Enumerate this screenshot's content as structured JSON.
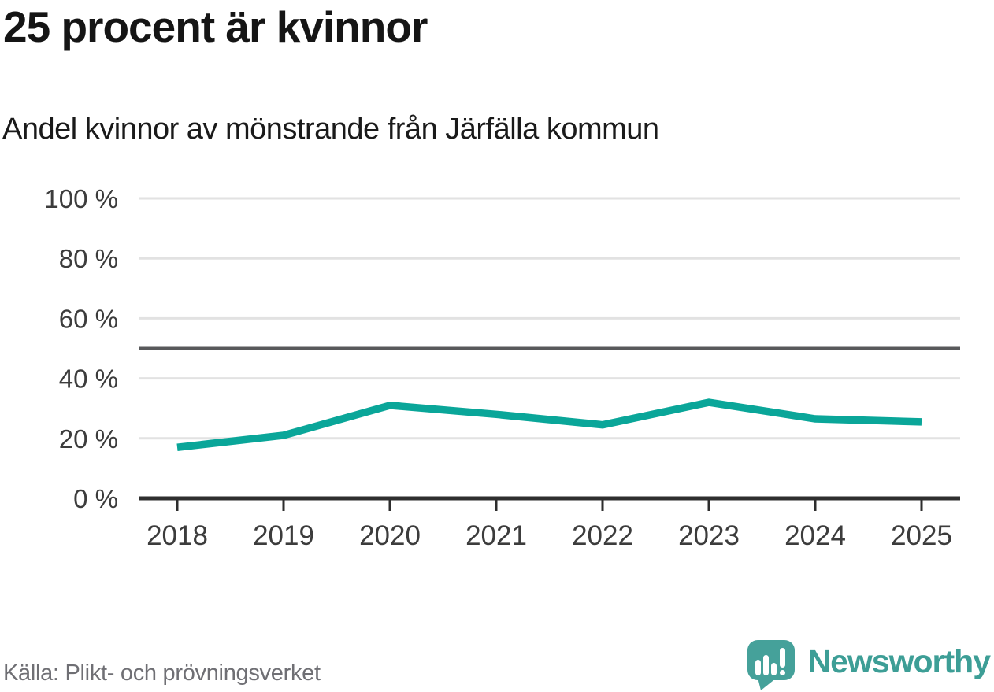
{
  "header": {
    "title": "25 procent är kvinnor",
    "subtitle": "Andel kvinnor av mönstrande från Järfälla kommun"
  },
  "footer": {
    "source": "Källa: Plikt- och prövningsverket",
    "brand": "Newsworthy"
  },
  "colors": {
    "line": "#0aa699",
    "grid": "#e2e2e2",
    "reference_line": "#58595b",
    "axis": "#2e2e2e",
    "brand_teal": "#3d9e96",
    "logo_bubble": "#45a19a"
  },
  "chart_data": {
    "type": "line",
    "title": "25 procent är kvinnor",
    "subtitle": "Andel kvinnor av mönstrande från Järfälla kommun",
    "categories": [
      "2018",
      "2019",
      "2020",
      "2021",
      "2022",
      "2023",
      "2024",
      "2025"
    ],
    "series": [
      {
        "name": "Andel kvinnor av mönstrande",
        "values": [
          17,
          21,
          31,
          28,
          24.5,
          32,
          26.5,
          25.5
        ]
      }
    ],
    "unit": "%",
    "ylim": [
      0,
      100
    ],
    "yticks": [
      0,
      20,
      40,
      60,
      80,
      100
    ],
    "ytick_labels": [
      "0 %",
      "20 %",
      "40 %",
      "60 %",
      "80 %",
      "100 %"
    ],
    "reference_line": 50,
    "grid": true,
    "legend_position": "none",
    "xlabel": "",
    "ylabel": ""
  }
}
